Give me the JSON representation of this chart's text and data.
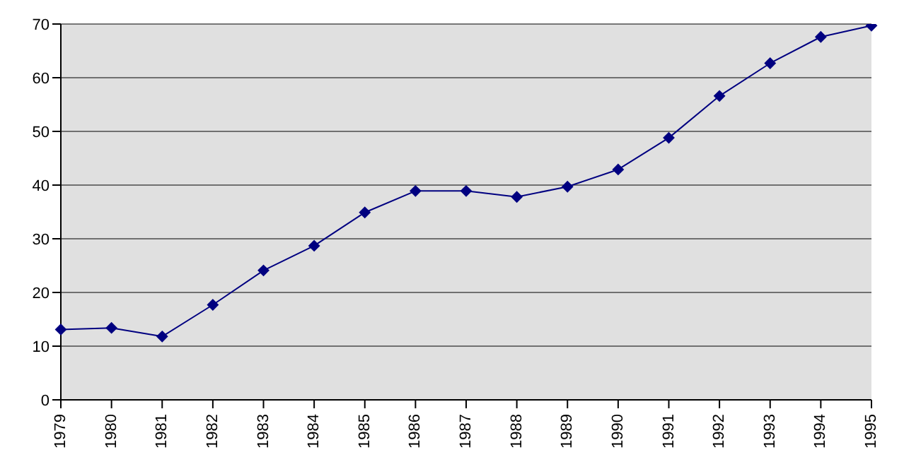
{
  "chart_data": {
    "type": "line",
    "categories": [
      "1979",
      "1980",
      "1981",
      "1982",
      "1983",
      "1984",
      "1985",
      "1986",
      "1987",
      "1988",
      "1989",
      "1990",
      "1991",
      "1992",
      "1993",
      "1994",
      "1995"
    ],
    "series": [
      {
        "color": "#000080",
        "values": [
          13.1,
          13.4,
          11.8,
          17.7,
          24.1,
          28.7,
          34.9,
          38.9,
          38.9,
          37.8,
          39.7,
          42.9,
          48.8,
          56.6,
          62.7,
          67.6,
          69.7
        ]
      }
    ],
    "ylim": [
      0,
      70
    ],
    "yticks": [
      0,
      10,
      20,
      30,
      40,
      50,
      60,
      70
    ],
    "grid": "y",
    "marker": "diamond",
    "line_style": "solid",
    "legend": false
  }
}
